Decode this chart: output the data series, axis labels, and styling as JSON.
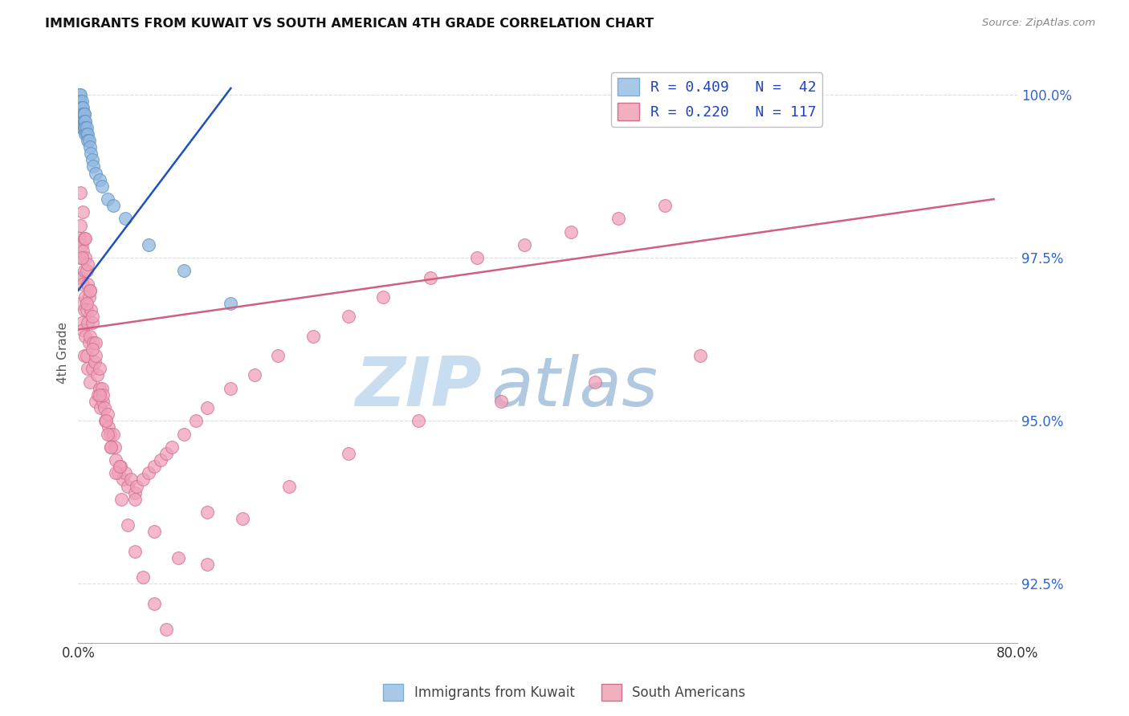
{
  "title": "IMMIGRANTS FROM KUWAIT VS SOUTH AMERICAN 4TH GRADE CORRELATION CHART",
  "source": "Source: ZipAtlas.com",
  "ylabel": "4th Grade",
  "xlim": [
    0.0,
    0.8
  ],
  "ylim": [
    0.916,
    1.005
  ],
  "xticks": [
    0.0,
    0.1,
    0.2,
    0.3,
    0.4,
    0.5,
    0.6,
    0.7,
    0.8
  ],
  "xticklabels": [
    "0.0%",
    "",
    "",
    "",
    "",
    "",
    "",
    "",
    "80.0%"
  ],
  "yticks": [
    0.925,
    0.95,
    0.975,
    1.0
  ],
  "yticklabels_right": [
    "92.5%",
    "95.0%",
    "97.5%",
    "100.0%"
  ],
  "kuwait_color": "#90b8e0",
  "kuwait_edge": "#6090c0",
  "sa_color": "#f0a0b8",
  "sa_edge": "#d07090",
  "trendline_kuwait_color": "#2050c0",
  "trendline_sa_color": "#d06080",
  "watermark_zip": "ZIP",
  "watermark_atlas": "atlas",
  "watermark_color_zip": "#c8ddf0",
  "watermark_color_atlas": "#b0c8e0",
  "background_color": "#ffffff",
  "grid_color": "#dddddd",
  "kuwait_scatter_x": [
    0.001,
    0.001,
    0.001,
    0.002,
    0.002,
    0.002,
    0.002,
    0.002,
    0.003,
    0.003,
    0.003,
    0.003,
    0.003,
    0.004,
    0.004,
    0.004,
    0.004,
    0.005,
    0.005,
    0.005,
    0.005,
    0.006,
    0.006,
    0.006,
    0.007,
    0.007,
    0.008,
    0.008,
    0.009,
    0.01,
    0.011,
    0.012,
    0.013,
    0.015,
    0.018,
    0.02,
    0.025,
    0.03,
    0.04,
    0.06,
    0.09,
    0.13
  ],
  "kuwait_scatter_y": [
    1.0,
    0.999,
    0.998,
    1.0,
    0.999,
    0.998,
    0.997,
    0.996,
    0.999,
    0.998,
    0.997,
    0.996,
    0.995,
    0.998,
    0.997,
    0.996,
    0.995,
    0.997,
    0.997,
    0.996,
    0.995,
    0.996,
    0.995,
    0.994,
    0.995,
    0.994,
    0.994,
    0.993,
    0.993,
    0.992,
    0.991,
    0.99,
    0.989,
    0.988,
    0.987,
    0.986,
    0.984,
    0.983,
    0.981,
    0.977,
    0.973,
    0.968
  ],
  "sa_scatter_x": [
    0.001,
    0.001,
    0.002,
    0.002,
    0.002,
    0.003,
    0.003,
    0.003,
    0.004,
    0.004,
    0.004,
    0.005,
    0.005,
    0.005,
    0.005,
    0.006,
    0.006,
    0.006,
    0.007,
    0.007,
    0.007,
    0.008,
    0.008,
    0.008,
    0.009,
    0.009,
    0.01,
    0.01,
    0.01,
    0.011,
    0.012,
    0.012,
    0.013,
    0.014,
    0.015,
    0.015,
    0.016,
    0.017,
    0.018,
    0.019,
    0.02,
    0.021,
    0.022,
    0.023,
    0.025,
    0.026,
    0.027,
    0.028,
    0.03,
    0.031,
    0.032,
    0.034,
    0.036,
    0.038,
    0.04,
    0.042,
    0.045,
    0.048,
    0.05,
    0.055,
    0.06,
    0.065,
    0.07,
    0.075,
    0.08,
    0.09,
    0.1,
    0.11,
    0.13,
    0.15,
    0.17,
    0.2,
    0.23,
    0.26,
    0.3,
    0.34,
    0.38,
    0.42,
    0.46,
    0.5,
    0.002,
    0.004,
    0.006,
    0.008,
    0.01,
    0.012,
    0.015,
    0.018,
    0.021,
    0.024,
    0.028,
    0.032,
    0.037,
    0.042,
    0.048,
    0.055,
    0.065,
    0.075,
    0.09,
    0.11,
    0.003,
    0.007,
    0.012,
    0.018,
    0.025,
    0.035,
    0.048,
    0.065,
    0.085,
    0.11,
    0.14,
    0.18,
    0.23,
    0.29,
    0.36,
    0.44,
    0.53
  ],
  "sa_scatter_y": [
    0.978,
    0.972,
    0.98,
    0.975,
    0.968,
    0.977,
    0.972,
    0.965,
    0.976,
    0.971,
    0.964,
    0.978,
    0.973,
    0.967,
    0.96,
    0.975,
    0.969,
    0.963,
    0.973,
    0.967,
    0.96,
    0.971,
    0.965,
    0.958,
    0.969,
    0.962,
    0.97,
    0.963,
    0.956,
    0.967,
    0.965,
    0.958,
    0.962,
    0.959,
    0.96,
    0.953,
    0.957,
    0.954,
    0.955,
    0.952,
    0.955,
    0.953,
    0.952,
    0.95,
    0.951,
    0.949,
    0.948,
    0.946,
    0.948,
    0.946,
    0.944,
    0.942,
    0.943,
    0.941,
    0.942,
    0.94,
    0.941,
    0.939,
    0.94,
    0.941,
    0.942,
    0.943,
    0.944,
    0.945,
    0.946,
    0.948,
    0.95,
    0.952,
    0.955,
    0.957,
    0.96,
    0.963,
    0.966,
    0.969,
    0.972,
    0.975,
    0.977,
    0.979,
    0.981,
    0.983,
    0.985,
    0.982,
    0.978,
    0.974,
    0.97,
    0.966,
    0.962,
    0.958,
    0.954,
    0.95,
    0.946,
    0.942,
    0.938,
    0.934,
    0.93,
    0.926,
    0.922,
    0.918,
    0.914,
    0.936,
    0.975,
    0.968,
    0.961,
    0.954,
    0.948,
    0.943,
    0.938,
    0.933,
    0.929,
    0.928,
    0.935,
    0.94,
    0.945,
    0.95,
    0.953,
    0.956,
    0.96
  ],
  "kuwait_trend_x0": 0.0,
  "kuwait_trend_y0": 0.97,
  "kuwait_trend_x1": 0.13,
  "kuwait_trend_y1": 1.001,
  "sa_trend_x0": 0.0,
  "sa_trend_y0": 0.964,
  "sa_trend_x1": 0.78,
  "sa_trend_y1": 0.984
}
